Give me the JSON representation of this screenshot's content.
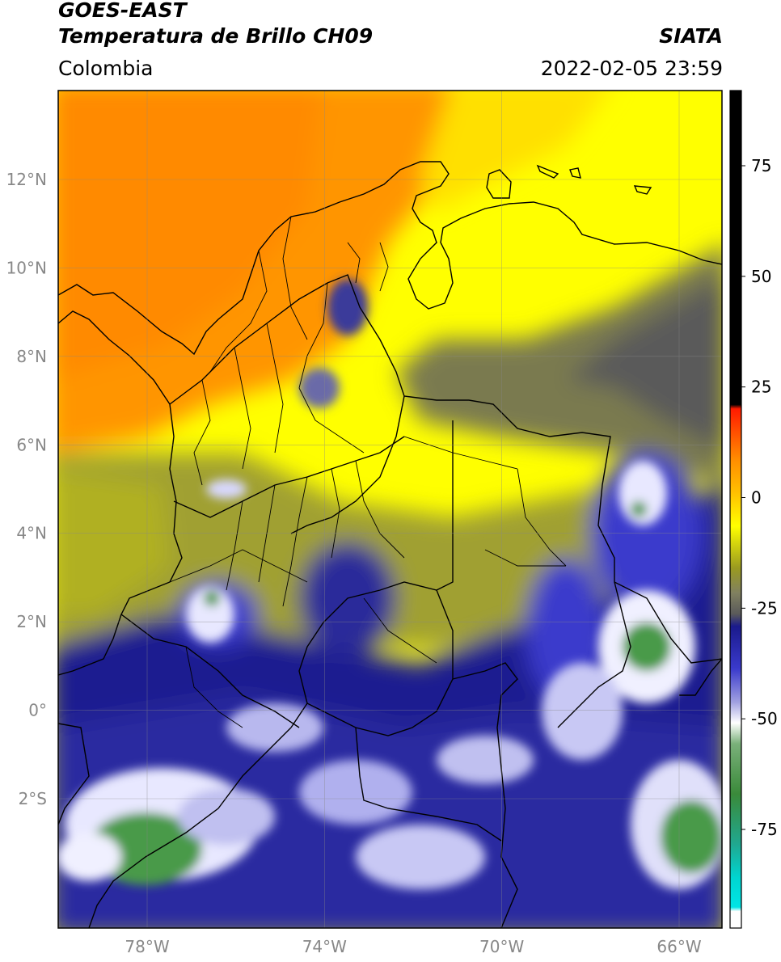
{
  "header": {
    "satellite": "GOES-EAST",
    "product": "Temperatura de Brillo CH09",
    "org": "SIATA",
    "region": "Colombia",
    "datetime": "2022-02-05 23:59"
  },
  "map": {
    "lon_range": [
      -80,
      -65
    ],
    "lat_range": [
      -5,
      14
    ],
    "lon_ticks": [
      {
        "value": -78,
        "label": "78°W"
      },
      {
        "value": -74,
        "label": "74°W"
      },
      {
        "value": -70,
        "label": "70°W"
      },
      {
        "value": -66,
        "label": "66°W"
      }
    ],
    "lat_ticks": [
      {
        "value": 12,
        "label": "12°N"
      },
      {
        "value": 10,
        "label": "10°N"
      },
      {
        "value": 8,
        "label": "8°N"
      },
      {
        "value": 6,
        "label": "6°N"
      },
      {
        "value": 4,
        "label": "4°N"
      },
      {
        "value": 2,
        "label": "2°N"
      },
      {
        "value": 0,
        "label": "0°"
      },
      {
        "value": -2,
        "label": "2°S"
      }
    ],
    "grid": true
  },
  "colorbar": {
    "range": [
      -95,
      90
    ],
    "ticks": [
      {
        "value": 75,
        "label": "75"
      },
      {
        "value": 50,
        "label": "50"
      },
      {
        "value": 25,
        "label": "25"
      },
      {
        "value": 0,
        "label": "0"
      },
      {
        "value": -25,
        "label": "-25"
      },
      {
        "value": -50,
        "label": "-50"
      },
      {
        "value": -75,
        "label": "-75"
      }
    ],
    "colors": {
      "black": "#000000",
      "red": "#ff1a00",
      "orange": "#ff8c00",
      "yellow": "#ffff00",
      "olive": "#9a9a20",
      "gray": "#5a5a5a",
      "navy": "#1a1a8c",
      "blue": "#3a3acc",
      "white": "#ffffff",
      "green": "#3a8a3a",
      "teal": "#20b0a0",
      "cyan": "#00e5e5"
    }
  }
}
